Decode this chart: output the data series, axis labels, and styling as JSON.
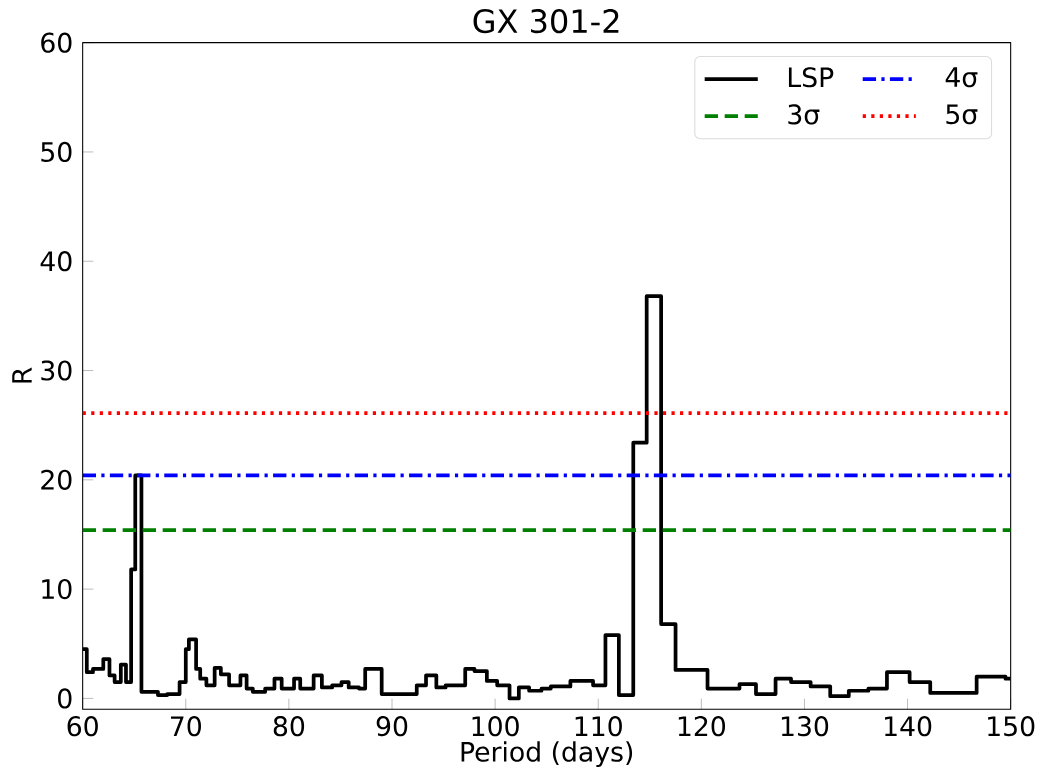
{
  "chart_data": {
    "type": "step",
    "title": "GX 301-2",
    "xlabel": "Period (days)",
    "ylabel": "R",
    "xlim": [
      60,
      150
    ],
    "xticks": [
      60,
      70,
      80,
      90,
      100,
      110,
      120,
      130,
      140,
      150
    ],
    "ylim": [
      -1,
      60
    ],
    "yticks": [
      0,
      10,
      20,
      30,
      40,
      50,
      60
    ],
    "series": [
      {
        "name": "LSP",
        "color": "#000000",
        "line_style": "solid",
        "x": [
          60.0,
          60.4,
          61.0,
          62.0,
          62.6,
          63.1,
          63.7,
          64.2,
          64.7,
          65.1,
          65.7,
          67.3,
          68.2,
          69.4,
          70.0,
          70.3,
          71.0,
          71.4,
          72.0,
          72.8,
          73.4,
          74.2,
          75.3,
          75.9,
          76.5,
          77.7,
          78.6,
          79.3,
          80.5,
          81.1,
          82.4,
          83.2,
          84.2,
          85.1,
          85.8,
          86.8,
          87.4,
          89.0,
          90.9,
          92.4,
          93.3,
          94.3,
          95.2,
          97.1,
          98.0,
          99.2,
          100.2,
          101.4,
          102.3,
          103.3,
          104.5,
          105.4,
          107.3,
          109.5,
          110.7,
          112.0,
          113.4,
          114.7,
          116.1,
          117.5,
          119.1,
          120.6,
          123.7,
          125.3,
          127.2,
          128.7,
          130.6,
          132.5,
          134.3,
          136.2,
          138.0,
          140.2,
          142.2,
          144.6,
          146.7,
          149.5,
          150.0
        ],
        "values": [
          4.5,
          2.4,
          2.7,
          3.6,
          2.1,
          1.5,
          3.1,
          1.5,
          11.8,
          20.4,
          0.6,
          0.3,
          0.4,
          1.5,
          4.5,
          5.4,
          2.7,
          1.8,
          1.2,
          2.8,
          2.2,
          1.2,
          2.1,
          0.9,
          0.6,
          0.9,
          1.8,
          0.9,
          1.8,
          0.9,
          2.1,
          1.0,
          1.2,
          1.5,
          1.0,
          0.9,
          2.7,
          0.4,
          0.4,
          1.2,
          2.1,
          1.0,
          1.2,
          2.7,
          2.5,
          1.6,
          1.2,
          0.0,
          1.0,
          0.7,
          0.9,
          1.1,
          1.6,
          1.2,
          5.8,
          0.3,
          23.4,
          36.8,
          6.8,
          2.6,
          2.6,
          0.9,
          1.3,
          0.4,
          1.8,
          1.5,
          1.1,
          0.2,
          0.7,
          0.9,
          2.4,
          1.5,
          0.5,
          0.5,
          2.0,
          1.8,
          1.8
        ]
      }
    ],
    "ref_lines": [
      {
        "axis": "y",
        "value": 15.4,
        "label": "3σ",
        "color": "#008000",
        "line_style": "dashed"
      },
      {
        "axis": "y",
        "value": 20.4,
        "label": "4σ",
        "color": "#0000ff",
        "line_style": "dashdot"
      },
      {
        "axis": "y",
        "value": 26.1,
        "label": "5σ",
        "color": "#ff0000",
        "line_style": "dotted"
      }
    ],
    "legend": "top right",
    "grid": false,
    "marker": "none"
  }
}
